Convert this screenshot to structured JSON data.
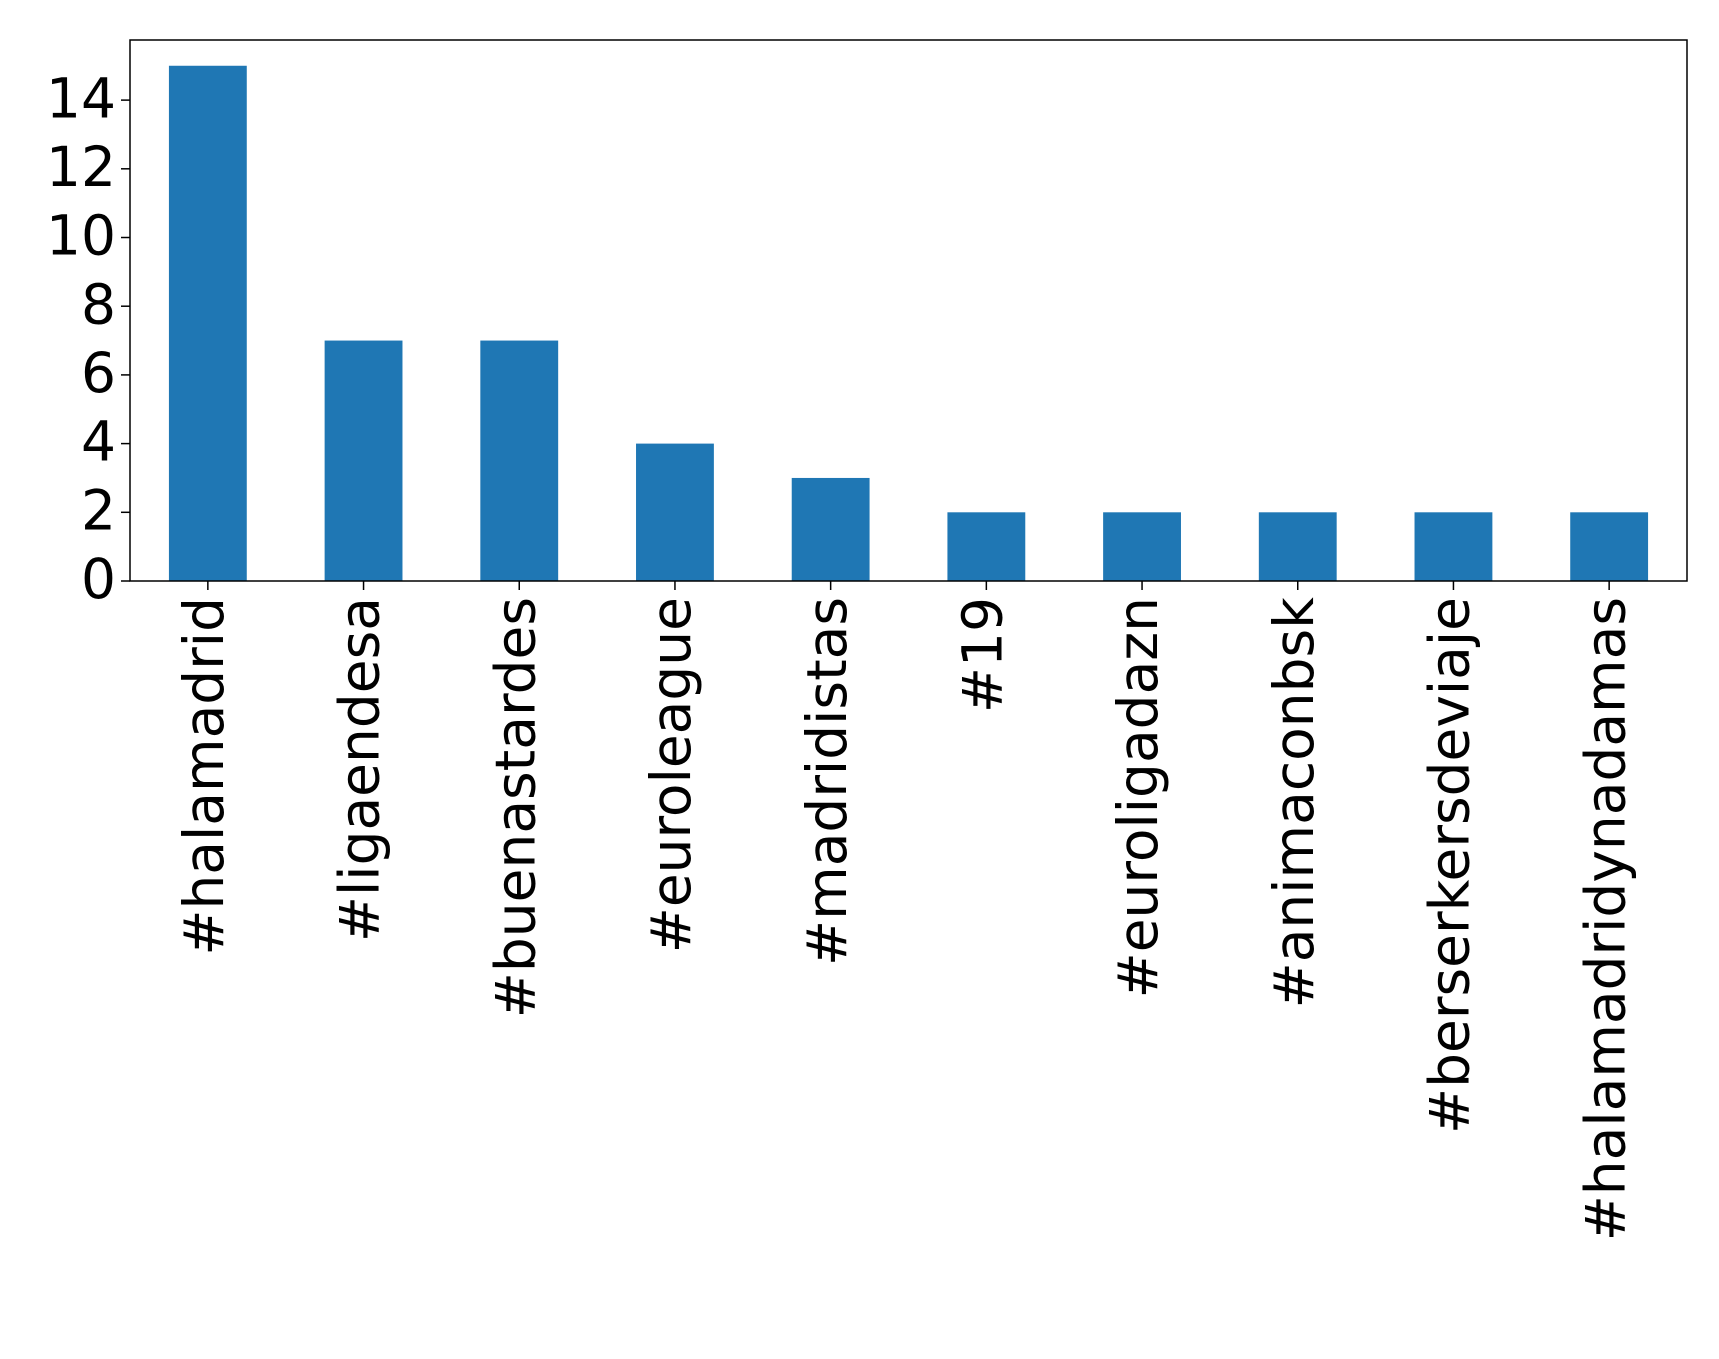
{
  "chart_data": {
    "type": "bar",
    "categories": [
      "#halamadrid",
      "#ligaendesa",
      "#buenastardes",
      "#euroleague",
      "#madridistas",
      "#19",
      "#euroligadazn",
      "#animaconbsk",
      "#berserkersdeviaje",
      "#halamadridynadamas"
    ],
    "values": [
      15,
      7,
      7,
      4,
      3,
      2,
      2,
      2,
      2,
      2
    ],
    "color": "#1f77b4",
    "ylim": [
      0,
      15.75
    ],
    "yticks": [
      0,
      2,
      4,
      6,
      8,
      10,
      12,
      14
    ],
    "grid": false
  }
}
